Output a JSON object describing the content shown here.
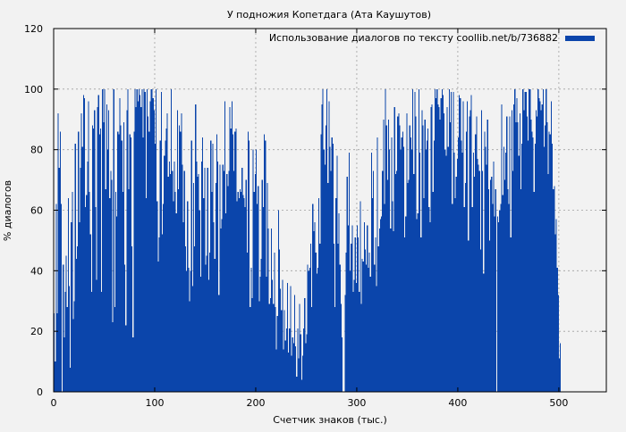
{
  "chart_data": {
    "type": "bar",
    "title": "У подножия Копетдага (Ата Каушутов)",
    "xlabel": "Счетчик знаков (тыс.)",
    "ylabel": "% диалогов",
    "xlim": [
      0,
      547
    ],
    "ylim": [
      0,
      120
    ],
    "xticks": [
      0,
      100,
      200,
      300,
      400,
      500
    ],
    "yticks": [
      0,
      20,
      40,
      60,
      80,
      100,
      120
    ],
    "grid": true,
    "legend_position": "top-right",
    "series": [
      {
        "name": "Использование диалогов по тексту coollib.net/b/736882",
        "color": "#0b45ab",
        "bin_width": 1,
        "x_start": 1,
        "values": [
          26,
          10,
          62,
          26,
          92,
          74,
          86,
          62,
          0,
          42,
          18,
          33,
          45,
          28,
          64,
          35,
          8,
          56,
          66,
          24,
          30,
          82,
          44,
          48,
          86,
          56,
          74,
          92,
          81,
          98,
          97,
          61,
          65,
          76,
          96,
          66,
          52,
          33,
          88,
          87,
          93,
          61,
          37,
          94,
          98,
          85,
          87,
          33,
          100,
          89,
          100,
          67,
          95,
          80,
          93,
          64,
          73,
          70,
          23,
          100,
          28,
          66,
          58,
          86,
          85,
          97,
          88,
          83,
          66,
          89,
          42,
          22,
          93,
          100,
          67,
          85,
          84,
          48,
          18,
          86,
          100,
          94,
          100,
          96,
          100,
          98,
          94,
          100,
          84,
          100,
          99,
          64,
          100,
          91,
          86,
          96,
          100,
          100,
          97,
          93,
          82,
          100,
          63,
          43,
          51,
          83,
          99,
          52,
          62,
          78,
          83,
          87,
          92,
          71,
          76,
          72,
          100,
          73,
          63,
          76,
          66,
          59,
          93,
          67,
          88,
          86,
          92,
          75,
          56,
          73,
          48,
          40,
          63,
          41,
          30,
          40,
          83,
          35,
          69,
          48,
          95,
          76,
          71,
          72,
          60,
          38,
          76,
          84,
          64,
          74,
          42,
          45,
          74,
          37,
          46,
          83,
          66,
          82,
          56,
          44,
          69,
          85,
          76,
          32,
          75,
          54,
          57,
          75,
          73,
          96,
          59,
          72,
          68,
          73,
          94,
          87,
          96,
          85,
          73,
          86,
          87,
          63,
          66,
          64,
          67,
          66,
          74,
          65,
          64,
          61,
          70,
          46,
          86,
          83,
          28,
          41,
          31,
          80,
          66,
          72,
          80,
          62,
          68,
          30,
          38,
          44,
          70,
          61,
          85,
          83,
          38,
          69,
          54,
          29,
          31,
          54,
          37,
          29,
          46,
          28,
          14,
          25,
          60,
          47,
          34,
          27,
          37,
          14,
          27,
          17,
          21,
          36,
          13,
          21,
          35,
          12,
          18,
          16,
          32,
          15,
          5,
          21,
          11,
          29,
          19,
          4,
          12,
          21,
          31,
          16,
          19,
          42,
          40,
          41,
          49,
          28,
          62,
          53,
          56,
          46,
          39,
          41,
          64,
          49,
          85,
          95,
          100,
          80,
          75,
          88,
          100,
          69,
          96,
          81,
          73,
          84,
          82,
          49,
          28,
          64,
          78,
          49,
          59,
          42,
          29,
          18,
          0,
          0,
          32,
          46,
          71,
          55,
          79,
          40,
          49,
          55,
          33,
          37,
          51,
          36,
          55,
          51,
          33,
          63,
          29,
          44,
          43,
          56,
          47,
          42,
          55,
          41,
          46,
          38,
          79,
          64,
          73,
          42,
          51,
          35,
          84,
          48,
          54,
          57,
          58,
          73,
          90,
          62,
          100,
          88,
          70,
          90,
          80,
          54,
          84,
          63,
          53,
          94,
          72,
          73,
          91,
          92,
          88,
          80,
          84,
          86,
          81,
          51,
          58,
          92,
          69,
          70,
          88,
          84,
          80,
          100,
          72,
          99,
          91,
          57,
          59,
          100,
          79,
          51,
          93,
          88,
          64,
          90,
          80,
          83,
          87,
          61,
          56,
          94,
          95,
          66,
          83,
          100,
          97,
          100,
          95,
          94,
          90,
          97,
          100,
          98,
          92,
          80,
          78,
          94,
          81,
          100,
          89,
          99,
          62,
          99,
          79,
          64,
          71,
          77,
          84,
          98,
          97,
          83,
          79,
          96,
          61,
          69,
          86,
          96,
          50,
          91,
          93,
          98,
          61,
          79,
          71,
          85,
          91,
          77,
          75,
          73,
          47,
          93,
          73,
          39,
          86,
          81,
          75,
          90,
          67,
          50,
          70,
          71,
          62,
          76,
          58,
          67,
          0,
          58,
          56,
          60,
          62,
          95,
          65,
          81,
          70,
          79,
          91,
          67,
          62,
          91,
          51,
          93,
          73,
          95,
          100,
          89,
          97,
          89,
          78,
          92,
          67,
          82,
          100,
          93,
          99,
          99,
          91,
          83,
          100,
          100,
          90,
          86,
          84,
          66,
          82,
          93,
          91,
          100,
          97,
          96,
          93,
          95,
          100,
          81,
          88,
          100,
          89,
          72,
          86,
          85,
          96,
          82,
          67,
          68,
          52,
          57,
          41,
          32,
          11,
          16
        ]
      }
    ]
  }
}
